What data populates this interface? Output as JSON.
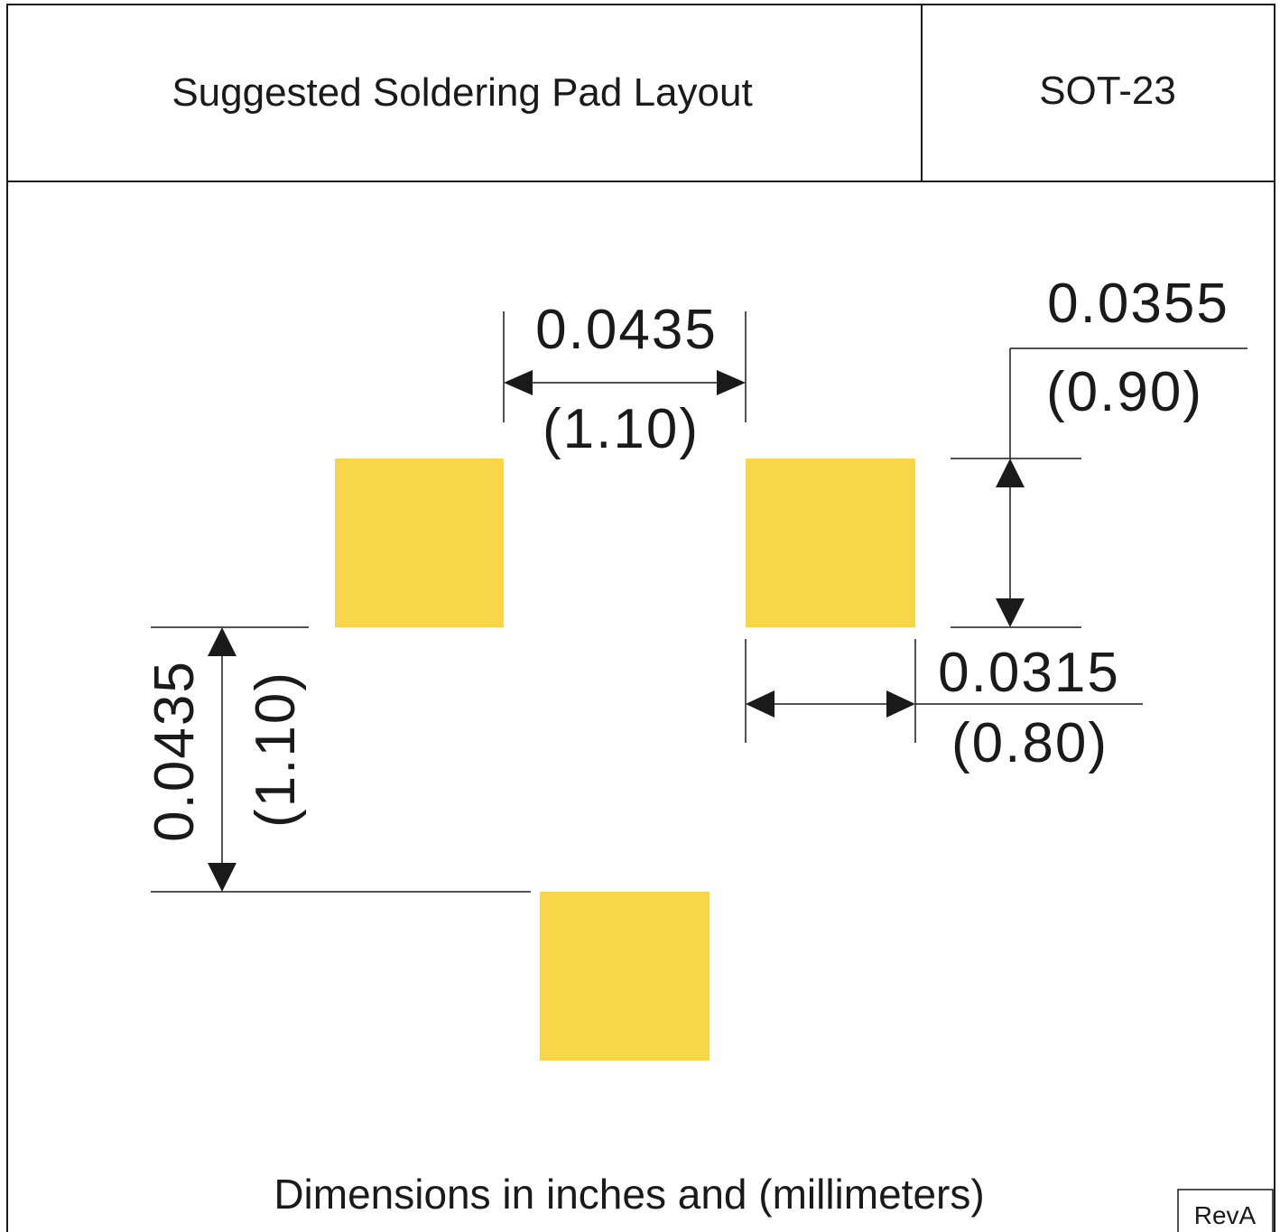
{
  "header": {
    "title": "Suggested Soldering Pad Layout",
    "package": "SOT-23"
  },
  "dimensions": {
    "pad_spacing_top": {
      "inches": "0.0435",
      "mm": "(1.10)"
    },
    "pad_height": {
      "inches": "0.0355",
      "mm": "(0.90)"
    },
    "pad_width": {
      "inches": "0.0315",
      "mm": "(0.80)"
    },
    "vertical_spacing": {
      "inches": "0.0435",
      "mm": "(1.10)"
    }
  },
  "footer": {
    "note": "Dimensions in inches and (millimeters)",
    "revision": "RevA"
  },
  "colors": {
    "pad": "#f9d648",
    "ink": "#1a1a1a"
  }
}
